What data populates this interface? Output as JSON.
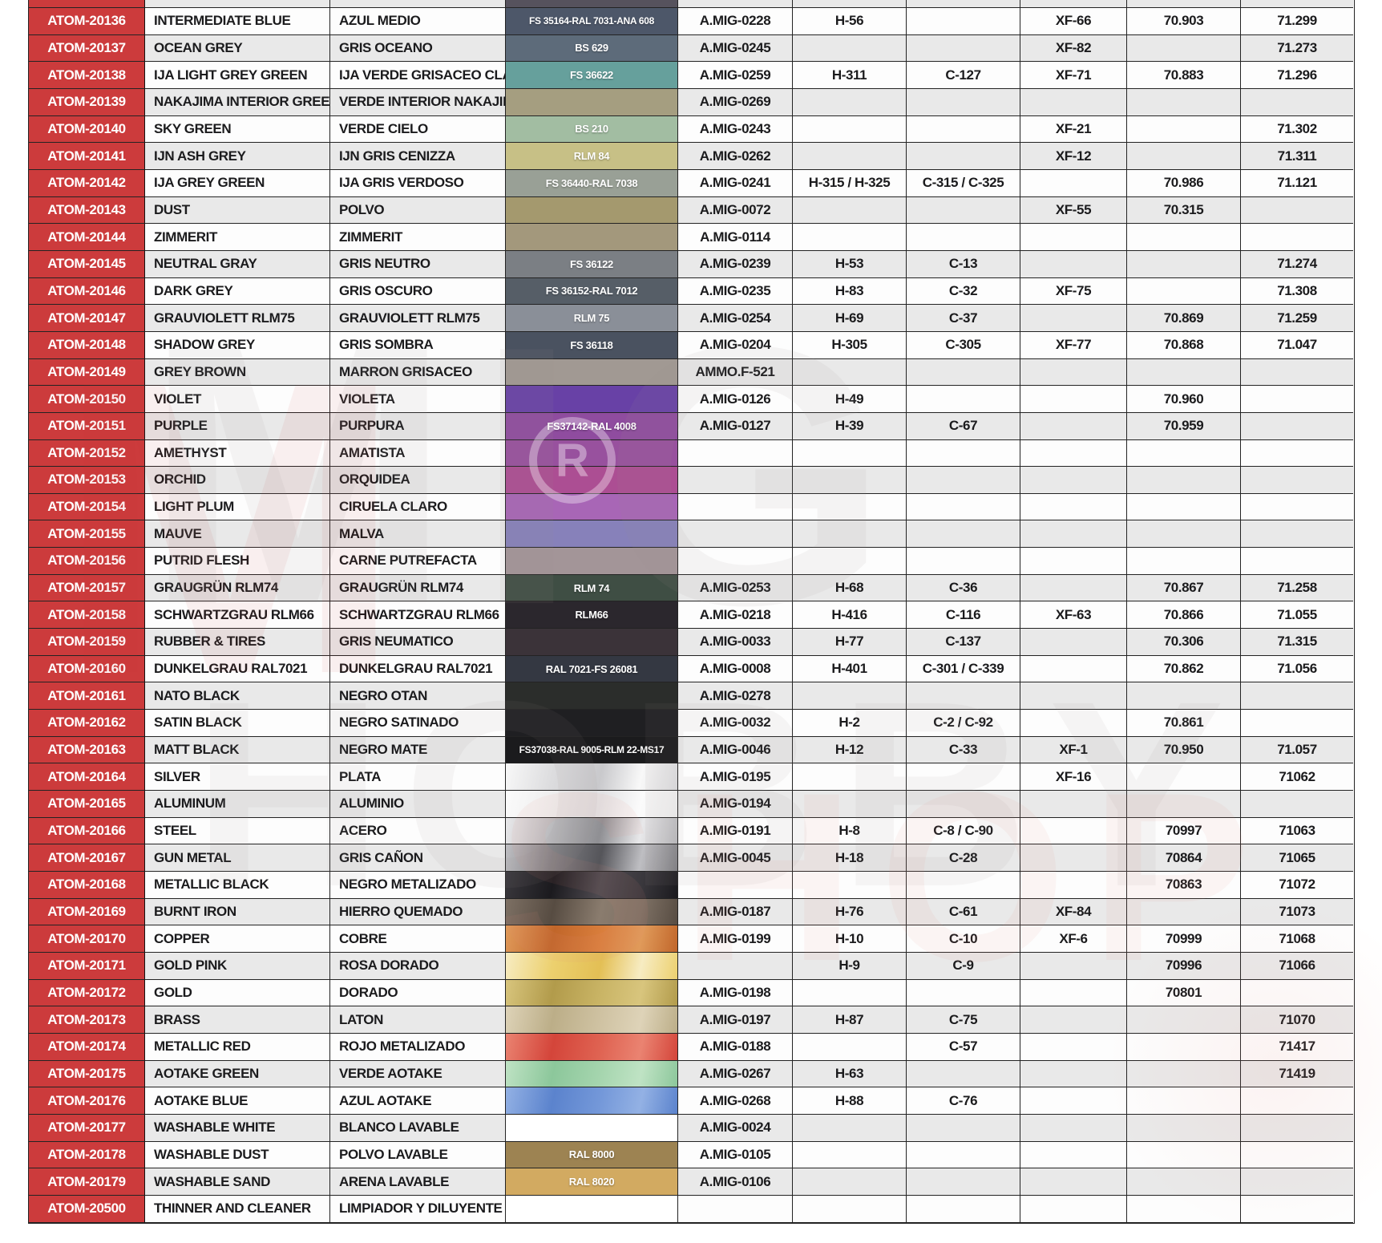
{
  "colors": {
    "red": "#cc3b3c",
    "stripe_light": "#fdfdfd",
    "stripe_dark": "#e9e9e9",
    "grid": "#232323",
    "text": "#1b1b1d"
  },
  "watermark": {
    "letters_top": "MIG",
    "letters_bottom": "HOBBY",
    "shop": "SHOP",
    "reg_symbol": "®"
  },
  "partial_row": {
    "swatch_color": "#56525d"
  },
  "rows": [
    {
      "code": "ATOM-20136",
      "en": "INTERMEDIATE BLUE",
      "es": "AZUL MEDIO",
      "label": "FS 35164-RAL 7031-ANA 608",
      "sw": "#4d5769",
      "amig": "A.MIG-0228",
      "h": "H-56",
      "c": "",
      "xf": "XF-66",
      "v70": "70.903",
      "v71": "71.299"
    },
    {
      "code": "ATOM-20137",
      "en": "OCEAN GREY",
      "es": "GRIS OCEANO",
      "label": "BS 629",
      "sw": "#5d6b7a",
      "amig": "A.MIG-0245",
      "h": "",
      "c": "",
      "xf": "XF-82",
      "v70": "",
      "v71": "71.273"
    },
    {
      "code": "ATOM-20138",
      "en": "IJA LIGHT GREY GREEN",
      "es": "IJA VERDE GRISACEO CLARO",
      "label": "FS 36622",
      "sw": "#66a09c",
      "amig": "A.MIG-0259",
      "h": "H-311",
      "c": "C-127",
      "xf": "XF-71",
      "v70": "70.883",
      "v71": "71.296"
    },
    {
      "code": "ATOM-20139",
      "en": "NAKAJIMA INTERIOR GREEN",
      "es": "VERDE INTERIOR NAKAJIMA",
      "label": "",
      "sw": "#a59e80",
      "amig": "A.MIG-0269",
      "h": "",
      "c": "",
      "xf": "",
      "v70": "",
      "v71": ""
    },
    {
      "code": "ATOM-20140",
      "en": "SKY GREEN",
      "es": "VERDE CIELO",
      "label": "BS 210",
      "sw": "#a2bda2",
      "amig": "A.MIG-0243",
      "h": "",
      "c": "",
      "xf": "XF-21",
      "v70": "",
      "v71": "71.302"
    },
    {
      "code": "ATOM-20141",
      "en": "IJN ASH GREY",
      "es": "IJN GRIS CENIZZA",
      "label": "RLM 84",
      "sw": "#c7c086",
      "amig": "A.MIG-0262",
      "h": "",
      "c": "",
      "xf": "XF-12",
      "v70": "",
      "v71": "71.311"
    },
    {
      "code": "ATOM-20142",
      "en": "IJA GREY GREEN",
      "es": "IJA GRIS VERDOSO",
      "label": "FS 36440-RAL 7038",
      "sw": "#99a096",
      "amig": "A.MIG-0241",
      "h": "H-315 / H-325",
      "c": "C-315 / C-325",
      "xf": "",
      "v70": "70.986",
      "v71": "71.121"
    },
    {
      "code": "ATOM-20143",
      "en": "DUST",
      "es": "POLVO",
      "label": "",
      "sw": "#a4996e",
      "amig": "A.MIG-0072",
      "h": "",
      "c": "",
      "xf": "XF-55",
      "v70": "70.315",
      "v71": ""
    },
    {
      "code": "ATOM-20144",
      "en": "ZIMMERIT",
      "es": "ZIMMERIT",
      "label": "",
      "sw": "#a3987c",
      "amig": "A.MIG-0114",
      "h": "",
      "c": "",
      "xf": "",
      "v70": "",
      "v71": ""
    },
    {
      "code": "ATOM-20145",
      "en": "NEUTRAL GRAY",
      "es": "GRIS NEUTRO",
      "label": "FS 36122",
      "sw": "#7b7f84",
      "amig": "A.MIG-0239",
      "h": "H-53",
      "c": "C-13",
      "xf": "",
      "v70": "",
      "v71": "71.274"
    },
    {
      "code": "ATOM-20146",
      "en": "DARK GREY",
      "es": "GRIS OSCURO",
      "label": "FS 36152-RAL 7012",
      "sw": "#565e67",
      "amig": "A.MIG-0235",
      "h": "H-83",
      "c": "C-32",
      "xf": "XF-75",
      "v70": "",
      "v71": "71.308"
    },
    {
      "code": "ATOM-20147",
      "en": "GRAUVIOLETT RLM75",
      "es": "GRAUVIOLETT RLM75",
      "label": "RLM 75",
      "sw": "#8a8f98",
      "amig": "A.MIG-0254",
      "h": "H-69",
      "c": "C-37",
      "xf": "",
      "v70": "70.869",
      "v71": "71.259"
    },
    {
      "code": "ATOM-20148",
      "en": "SHADOW GREY",
      "es": "GRIS SOMBRA",
      "label": "FS 36118",
      "sw": "#4a5260",
      "amig": "A.MIG-0204",
      "h": "H-305",
      "c": "C-305",
      "xf": "XF-77",
      "v70": "70.868",
      "v71": "71.047"
    },
    {
      "code": "ATOM-20149",
      "en": "GREY BROWN",
      "es": "MARRON GRISACEO",
      "label": "",
      "sw": "#a19993",
      "amig": "AMMO.F-521",
      "h": "",
      "c": "",
      "xf": "",
      "v70": "",
      "v71": ""
    },
    {
      "code": "ATOM-20150",
      "en": "VIOLET",
      "es": "VIOLETA",
      "label": "",
      "sw": "#6841a6",
      "amig": "A.MIG-0126",
      "h": "H-49",
      "c": "",
      "xf": "",
      "v70": "70.960",
      "v71": ""
    },
    {
      "code": "ATOM-20151",
      "en": "PURPLE",
      "es": "PURPURA",
      "label": "FS37142-RAL 4008",
      "sw": "#8f4c9f",
      "amig": "A.MIG-0127",
      "h": "H-39",
      "c": "C-67",
      "xf": "",
      "v70": "70.959",
      "v71": ""
    },
    {
      "code": "ATOM-20152",
      "en": "AMETHYST",
      "es": "AMATISTA",
      "label": "",
      "sw": "#98519e",
      "amig": "",
      "h": "",
      "c": "",
      "xf": "",
      "v70": "",
      "v71": ""
    },
    {
      "code": "ATOM-20153",
      "en": "ORCHID",
      "es": "ORQUIDEA",
      "label": "",
      "sw": "#ac4e93",
      "amig": "",
      "h": "",
      "c": "",
      "xf": "",
      "v70": "",
      "v71": ""
    },
    {
      "code": "ATOM-20154",
      "en": "LIGHT PLUM",
      "es": "CIRUELA CLARO",
      "label": "",
      "sw": "#a866b6",
      "amig": "",
      "h": "",
      "c": "",
      "xf": "",
      "v70": "",
      "v71": ""
    },
    {
      "code": "ATOM-20155",
      "en": "MAUVE",
      "es": "MALVA",
      "label": "",
      "sw": "#8781ba",
      "amig": "",
      "h": "",
      "c": "",
      "xf": "",
      "v70": "",
      "v71": ""
    },
    {
      "code": "ATOM-20156",
      "en": "PUTRID FLESH",
      "es": "CARNE PUTREFACTA",
      "label": "",
      "sw": "#a39598",
      "amig": "",
      "h": "",
      "c": "",
      "xf": "",
      "v70": "",
      "v71": ""
    },
    {
      "code": "ATOM-20157",
      "en": "GRAUGRÜN RLM74",
      "es": "GRAUGRÜN RLM74",
      "label": "RLM 74",
      "sw": "#3f4e44",
      "amig": "A.MIG-0253",
      "h": "H-68",
      "c": "C-36",
      "xf": "",
      "v70": "70.867",
      "v71": "71.258"
    },
    {
      "code": "ATOM-20158",
      "en": "SCHWARTZGRAU RLM66",
      "es": "SCHWARTZGRAU RLM66",
      "label": "RLM66",
      "sw": "#2b272d",
      "amig": "A.MIG-0218",
      "h": "H-416",
      "c": "C-116",
      "xf": "XF-63",
      "v70": "70.866",
      "v71": "71.055"
    },
    {
      "code": "ATOM-20159",
      "en": "RUBBER & TIRES",
      "es": "GRIS NEUMATICO",
      "label": "",
      "sw": "#3b3339",
      "amig": "A.MIG-0033",
      "h": "H-77",
      "c": "C-137",
      "xf": "",
      "v70": "70.306",
      "v71": "71.315"
    },
    {
      "code": "ATOM-20160",
      "en": "DUNKELGRAU RAL7021",
      "es": "DUNKELGRAU RAL7021",
      "label": "RAL 7021-FS 26081",
      "sw": "#343842",
      "amig": "A.MIG-0008",
      "h": "H-401",
      "c": "C-301 / C-339",
      "xf": "",
      "v70": "70.862",
      "v71": "71.056"
    },
    {
      "code": "ATOM-20161",
      "en": "NATO BLACK",
      "es": "NEGRO OTAN",
      "label": "",
      "sw": "#2b2d2b",
      "amig": "A.MIG-0278",
      "h": "",
      "c": "",
      "xf": "",
      "v70": "",
      "v71": ""
    },
    {
      "code": "ATOM-20162",
      "en": "SATIN BLACK",
      "es": "NEGRO SATINADO",
      "label": "",
      "sw": "#1f1f22",
      "amig": "A.MIG-0032",
      "h": "H-2",
      "c": "C-2 / C-92",
      "xf": "",
      "v70": "70.861",
      "v71": ""
    },
    {
      "code": "ATOM-20163",
      "en": "MATT BLACK",
      "es": "NEGRO MATE",
      "label": "FS37038-RAL 9005-RLM 22-MS17",
      "sw": "#1b1b1d",
      "amig": "A.MIG-0046",
      "h": "H-12",
      "c": "C-33",
      "xf": "XF-1",
      "v70": "70.950",
      "v71": "71.057"
    },
    {
      "code": "ATOM-20164",
      "en": "SILVER",
      "es": "PLATA",
      "label": "",
      "sw": [
        "#f8f8f8",
        "#dcdcde",
        "#c9c9cc"
      ],
      "amig": "A.MIG-0195",
      "h": "",
      "c": "",
      "xf": "XF-16",
      "v70": "",
      "v71": "71062"
    },
    {
      "code": "ATOM-20165",
      "en": "ALUMINUM",
      "es": "ALUMINIO",
      "label": "",
      "sw": [
        "#fbfbfb",
        "#eeeeee",
        "#e2e2e4"
      ],
      "amig": "A.MIG-0194",
      "h": "",
      "c": "",
      "xf": "",
      "v70": "",
      "v71": ""
    },
    {
      "code": "ATOM-20166",
      "en": "STEEL",
      "es": "ACERO",
      "label": "",
      "sw": [
        "#e8e8ea",
        "#b9b9bc",
        "#8f8f93"
      ],
      "amig": "A.MIG-0191",
      "h": "H-8",
      "c": "C-8 / C-90",
      "xf": "",
      "v70": "70997",
      "v71": "71063"
    },
    {
      "code": "ATOM-20167",
      "en": "GUN METAL",
      "es": "GRIS CAÑON",
      "label": "",
      "sw": [
        "#bebec2",
        "#808084",
        "#55555a"
      ],
      "amig": "A.MIG-0045",
      "h": "H-18",
      "c": "C-28",
      "xf": "",
      "v70": "70864",
      "v71": "71065"
    },
    {
      "code": "ATOM-20168",
      "en": "METALLIC BLACK",
      "es": "NEGRO METALIZADO",
      "label": "",
      "sw": [
        "#3a383d",
        "#1b1a1e",
        "#4e4a50"
      ],
      "amig": "",
      "h": "",
      "c": "",
      "xf": "",
      "v70": "70863",
      "v71": "71072"
    },
    {
      "code": "ATOM-20169",
      "en": "BURNT IRON",
      "es": "HIERRO QUEMADO",
      "label": "",
      "sw": [
        "#7d7064",
        "#574c42",
        "#8a7c6e"
      ],
      "amig": "A.MIG-0187",
      "h": "H-76",
      "c": "C-61",
      "xf": "XF-84",
      "v70": "",
      "v71": "71073"
    },
    {
      "code": "ATOM-20170",
      "en": "COPPER",
      "es": "COBRE",
      "label": "",
      "sw": [
        "#e09a5a",
        "#c1662a",
        "#d97e3c"
      ],
      "amig": "A.MIG-0199",
      "h": "H-10",
      "c": "C-10",
      "xf": "XF-6",
      "v70": "70999",
      "v71": "71068"
    },
    {
      "code": "ATOM-20171",
      "en": "GOLD PINK",
      "es": "ROSA DORADO",
      "label": "",
      "sw": [
        "#f7ecc2",
        "#ecd06e",
        "#e3bf55"
      ],
      "amig": "",
      "h": "H-9",
      "c": "C-9",
      "xf": "",
      "v70": "70996",
      "v71": "71066"
    },
    {
      "code": "ATOM-20172",
      "en": "GOLD",
      "es": "DORADO",
      "label": "",
      "sw": [
        "#d8c57d",
        "#b29b4b",
        "#c9b465"
      ],
      "amig": "A.MIG-0198",
      "h": "",
      "c": "",
      "xf": "",
      "v70": "70801",
      "v71": ""
    },
    {
      "code": "ATOM-20173",
      "en": "BRASS",
      "es": "LATON",
      "label": "",
      "sw": [
        "#ded3b8",
        "#bcae88",
        "#cfc2a2"
      ],
      "amig": "A.MIG-0197",
      "h": "H-87",
      "c": "C-75",
      "xf": "",
      "v70": "",
      "v71": "71070"
    },
    {
      "code": "ATOM-20174",
      "en": "METALLIC RED",
      "es": "ROJO METALIZADO",
      "label": "",
      "sw": [
        "#ea8371",
        "#d4453a",
        "#df6352"
      ],
      "amig": "A.MIG-0188",
      "h": "",
      "c": "C-57",
      "xf": "",
      "v70": "",
      "v71": "71417"
    },
    {
      "code": "ATOM-20175",
      "en": "AOTAKE GREEN",
      "es": "VERDE AOTAKE",
      "label": "",
      "sw": [
        "#bfe3c4",
        "#8cc79b",
        "#a5d5ae"
      ],
      "amig": "A.MIG-0267",
      "h": "H-63",
      "c": "",
      "xf": "",
      "v70": "",
      "v71": "71419"
    },
    {
      "code": "ATOM-20176",
      "en": "AOTAKE BLUE",
      "es": "AZUL AOTAKE",
      "label": "",
      "sw": [
        "#93b1e4",
        "#5b83cd",
        "#7498d9"
      ],
      "amig": "A.MIG-0268",
      "h": "H-88",
      "c": "C-76",
      "xf": "",
      "v70": "",
      "v71": ""
    },
    {
      "code": "ATOM-20177",
      "en": "WASHABLE WHITE",
      "es": "BLANCO LAVABLE",
      "label": "",
      "sw": "#ffffff",
      "amig": "A.MIG-0024",
      "h": "",
      "c": "",
      "xf": "",
      "v70": "",
      "v71": ""
    },
    {
      "code": "ATOM-20178",
      "en": "WASHABLE DUST",
      "es": "POLVO LAVABLE",
      "label": "RAL 8000",
      "sw": "#9d8352",
      "amig": "A.MIG-0105",
      "h": "",
      "c": "",
      "xf": "",
      "v70": "",
      "v71": ""
    },
    {
      "code": "ATOM-20179",
      "en": "WASHABLE SAND",
      "es": "ARENA LAVABLE",
      "label": "RAL 8020",
      "sw": "#d2aa61",
      "amig": "A.MIG-0106",
      "h": "",
      "c": "",
      "xf": "",
      "v70": "",
      "v71": ""
    },
    {
      "code": "ATOM-20500",
      "en": "THINNER AND  CLEANER",
      "es": "LIMPIADOR Y DILUYENTE",
      "label": "",
      "sw": "#ffffff",
      "amig": "",
      "h": "",
      "c": "",
      "xf": "",
      "v70": "",
      "v71": ""
    }
  ]
}
